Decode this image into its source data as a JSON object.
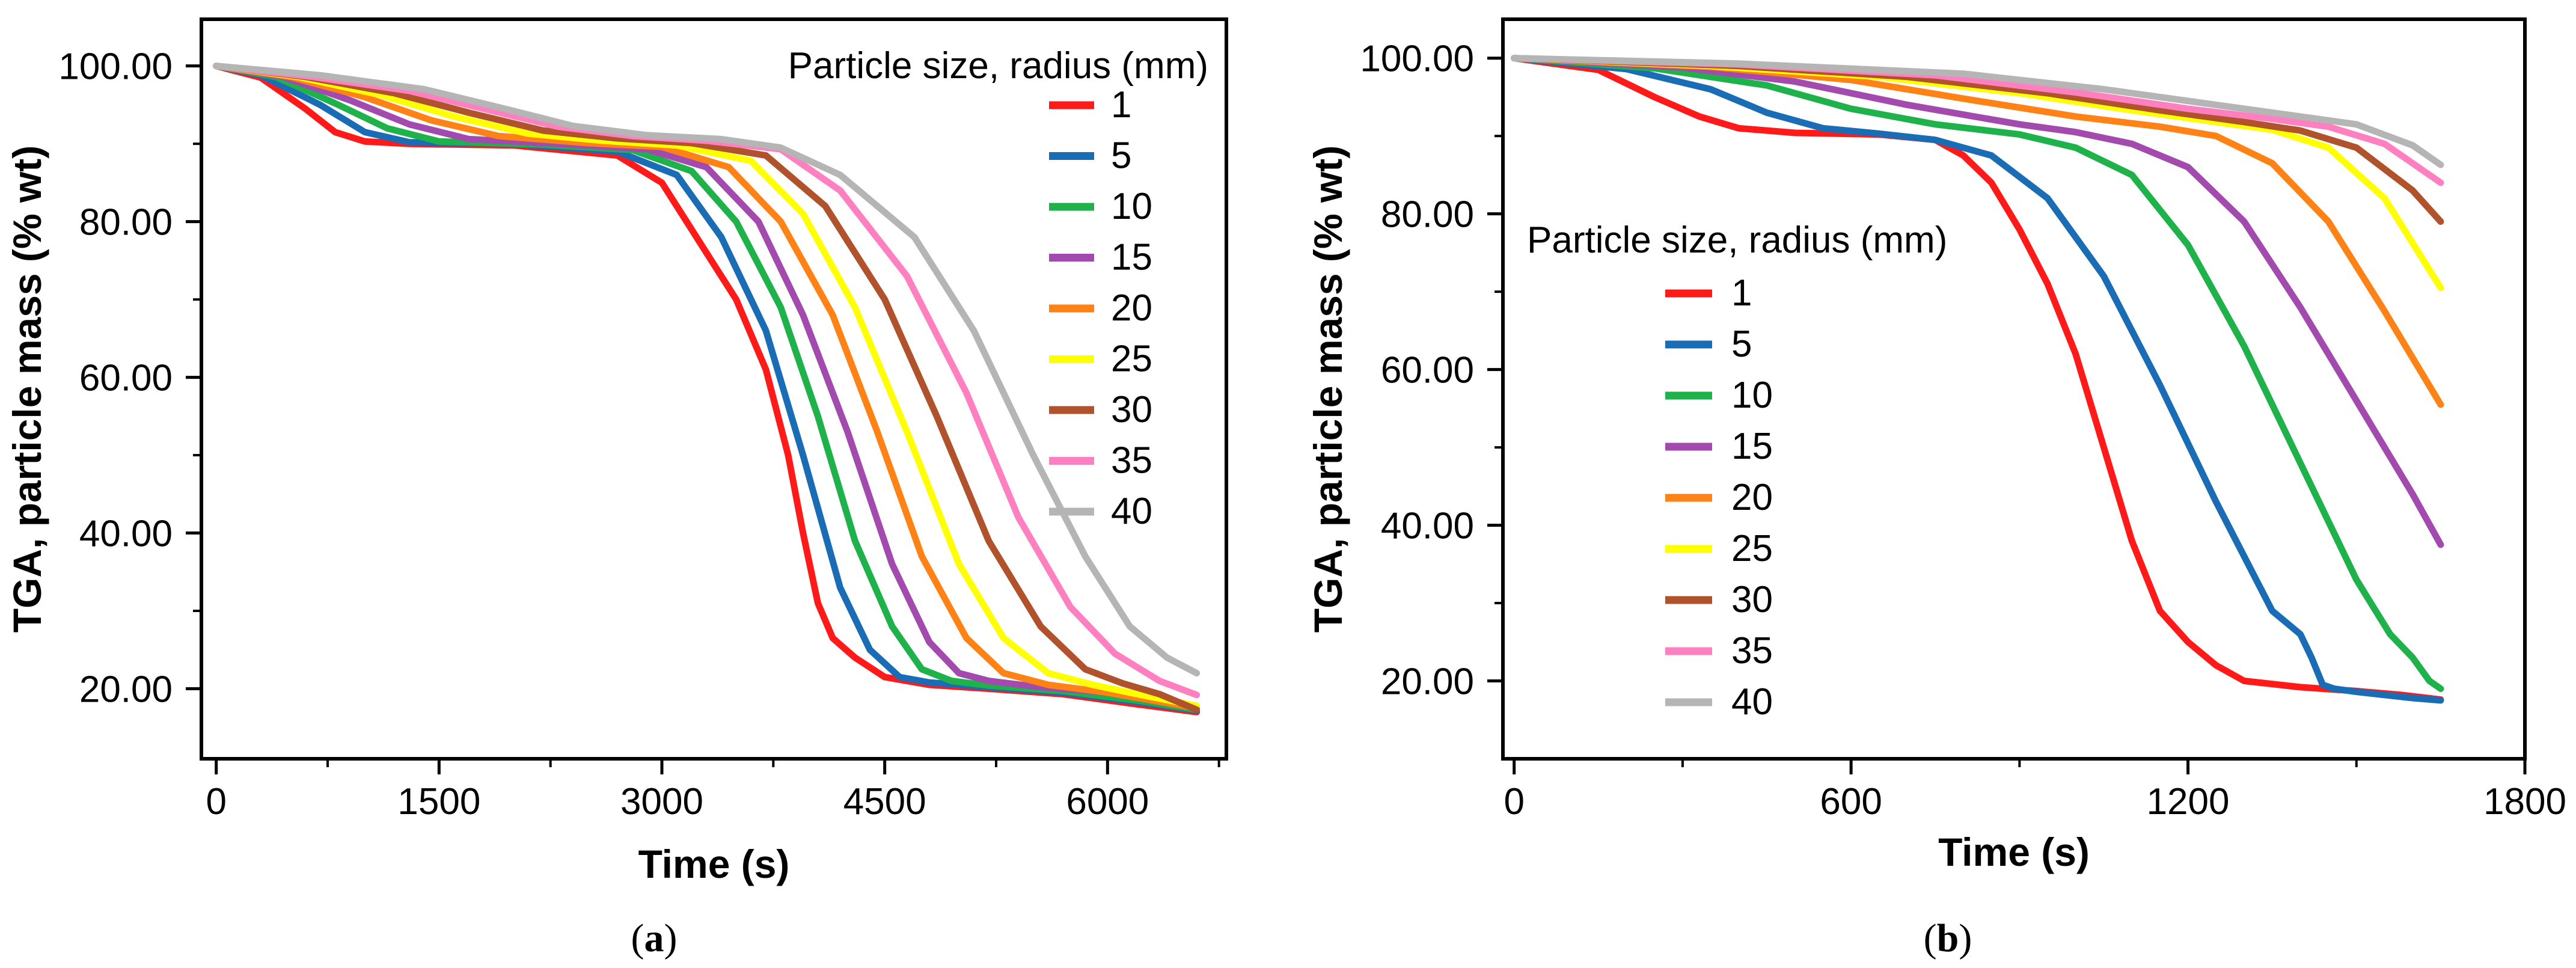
{
  "chart_data": [
    {
      "type": "line",
      "panel_label": "a",
      "xlabel": "Time (s)",
      "ylabel": "TGA, particle mass (% wt)",
      "xlim": [
        -100,
        6800
      ],
      "ylim": [
        11,
        106
      ],
      "xticks": [
        0,
        1500,
        3000,
        4500,
        6000
      ],
      "xtick_labels": [
        "0",
        "1500",
        "3000",
        "4500",
        "6000"
      ],
      "yticks": [
        20,
        40,
        60,
        80,
        100
      ],
      "ytick_labels": [
        "20.00",
        "40.00",
        "60.00",
        "80.00",
        "100.00"
      ],
      "grid": false,
      "legend": {
        "title": "Particle size, radius (mm)",
        "placement": "top-right"
      },
      "series": [
        {
          "name": "1",
          "color": "#ff1a1a",
          "x": [
            0,
            300,
            600,
            800,
            1000,
            1300,
            2000,
            2700,
            3000,
            3300,
            3500,
            3700,
            3850,
            3950,
            4050,
            4150,
            4300,
            4500,
            4800,
            5200,
            5700,
            6200,
            6600
          ],
          "y": [
            100,
            98.5,
            94.5,
            91.5,
            90.3,
            90,
            89.8,
            88.5,
            85,
            76,
            70,
            61,
            50,
            40,
            31,
            26.5,
            24,
            21.5,
            20.5,
            20,
            19.3,
            18,
            17
          ]
        },
        {
          "name": "5",
          "color": "#1a6db5",
          "x": [
            0,
            300,
            700,
            1000,
            1300,
            2000,
            2700,
            3100,
            3400,
            3700,
            3950,
            4200,
            4400,
            4600,
            4800,
            5200,
            5700,
            6200,
            6600
          ],
          "y": [
            100,
            98.8,
            95,
            91.5,
            90.2,
            90,
            89,
            86,
            78,
            66,
            50,
            33,
            25,
            21.5,
            20.8,
            20.2,
            19.5,
            18.3,
            17.2
          ]
        },
        {
          "name": "10",
          "color": "#1fb24b",
          "x": [
            0,
            400,
            800,
            1150,
            1500,
            2200,
            2800,
            3200,
            3500,
            3800,
            4050,
            4300,
            4550,
            4750,
            4950,
            5200,
            5700,
            6200,
            6600
          ],
          "y": [
            100,
            98.6,
            95.2,
            92,
            90.3,
            89.9,
            89.2,
            86.5,
            80,
            69,
            55,
            39,
            28,
            22.5,
            21,
            20.4,
            19.7,
            18.5,
            17.3
          ]
        },
        {
          "name": "15",
          "color": "#a24aae",
          "x": [
            0,
            450,
            900,
            1300,
            1700,
            2300,
            2900,
            3300,
            3650,
            3950,
            4250,
            4550,
            4800,
            5000,
            5200,
            5500,
            6000,
            6600
          ],
          "y": [
            100,
            98.6,
            95.6,
            92.5,
            90.6,
            90,
            89.3,
            87,
            80,
            68,
            53,
            36,
            26,
            22,
            21,
            20.3,
            19.5,
            17.5
          ]
        },
        {
          "name": "20",
          "color": "#ff8216",
          "x": [
            0,
            500,
            1000,
            1450,
            1900,
            2500,
            3000,
            3450,
            3800,
            4150,
            4450,
            4750,
            5050,
            5300,
            5600,
            6000,
            6600
          ],
          "y": [
            100,
            98.6,
            96,
            93,
            91,
            90.1,
            89.6,
            87,
            80,
            68,
            53,
            37,
            26.5,
            22,
            20.5,
            19.5,
            17.5
          ]
        },
        {
          "name": "25",
          "color": "#ffff00",
          "x": [
            0,
            550,
            1100,
            1600,
            2100,
            2600,
            3100,
            3600,
            3950,
            4300,
            4650,
            5000,
            5300,
            5600,
            5900,
            6200,
            6600
          ],
          "y": [
            100,
            98.6,
            96.3,
            93.5,
            91.3,
            90.4,
            89.8,
            87.8,
            81,
            69,
            53,
            36,
            26.5,
            22,
            20.5,
            19.3,
            17.8
          ]
        },
        {
          "name": "30",
          "color": "#b0522b",
          "x": [
            0,
            600,
            1200,
            1700,
            2200,
            2700,
            3200,
            3700,
            4100,
            4500,
            4850,
            5200,
            5550,
            5850,
            6100,
            6350,
            6600
          ],
          "y": [
            100,
            98.6,
            96.5,
            94,
            91.7,
            90.7,
            90.1,
            88.5,
            82,
            70,
            55,
            39,
            28,
            22.5,
            20.7,
            19.3,
            17.3
          ]
        },
        {
          "name": "35",
          "color": "#ff80c0",
          "x": [
            0,
            650,
            1300,
            1800,
            2300,
            2800,
            3300,
            3800,
            4200,
            4650,
            5050,
            5400,
            5750,
            6050,
            6350,
            6600
          ],
          "y": [
            100,
            98.6,
            96.8,
            94.5,
            92.2,
            91,
            90.4,
            89.3,
            84,
            73,
            58,
            42,
            30.5,
            24.5,
            21,
            19.2
          ]
        },
        {
          "name": "40",
          "color": "#b5b5b5",
          "x": [
            0,
            700,
            1400,
            1900,
            2400,
            2900,
            3400,
            3800,
            4200,
            4700,
            5100,
            5500,
            5850,
            6150,
            6400,
            6600
          ],
          "y": [
            100,
            98.8,
            97,
            94.7,
            92.3,
            91.1,
            90.6,
            89.5,
            86,
            78,
            66,
            50,
            37,
            28,
            24,
            22
          ]
        }
      ]
    },
    {
      "type": "line",
      "panel_label": "b",
      "xlabel": "Time (s)",
      "ylabel": "TGA, particle mass (% wt)",
      "xlim": [
        -20,
        1800
      ],
      "ylim": [
        10,
        105
      ],
      "xticks": [
        0,
        600,
        1200,
        1800
      ],
      "xtick_labels": [
        "0",
        "600",
        "1200",
        "1800"
      ],
      "yticks": [
        20,
        40,
        60,
        80,
        100
      ],
      "ytick_labels": [
        "20.00",
        "40.00",
        "60.00",
        "80.00",
        "100.00"
      ],
      "grid": false,
      "legend": {
        "title": "Particle size, radius (mm)",
        "placement": "center-left"
      },
      "series": [
        {
          "name": "1",
          "color": "#ff1a1a",
          "x": [
            0,
            150,
            250,
            330,
            400,
            500,
            650,
            750,
            800,
            850,
            900,
            950,
            1000,
            1050,
            1100,
            1150,
            1200,
            1250,
            1300,
            1400,
            1500,
            1580,
            1650
          ],
          "y": [
            100,
            98.5,
            95,
            92.5,
            91,
            90.4,
            90.2,
            89.5,
            87.5,
            84,
            78,
            71,
            62,
            50,
            38,
            29,
            25,
            22,
            20,
            19.2,
            18.7,
            18.2,
            17.6
          ]
        },
        {
          "name": "5",
          "color": "#1a6db5",
          "x": [
            0,
            200,
            350,
            450,
            550,
            650,
            750,
            850,
            950,
            1050,
            1150,
            1250,
            1300,
            1350,
            1400,
            1420,
            1440,
            1460,
            1500,
            1600,
            1650
          ],
          "y": [
            100,
            98.6,
            96,
            93,
            91,
            90.3,
            89.5,
            87.5,
            82,
            72,
            58,
            43,
            36,
            29,
            26,
            23,
            19.5,
            19,
            18.6,
            17.8,
            17.5
          ]
        },
        {
          "name": "10",
          "color": "#1fb24b",
          "x": [
            0,
            250,
            450,
            600,
            750,
            900,
            1000,
            1100,
            1200,
            1300,
            1400,
            1500,
            1560,
            1600,
            1630,
            1650
          ],
          "y": [
            100,
            98.7,
            96.5,
            93.5,
            91.5,
            90.2,
            88.5,
            85,
            76,
            63,
            48,
            33,
            26,
            23,
            20,
            19
          ]
        },
        {
          "name": "15",
          "color": "#a24aae",
          "x": [
            0,
            300,
            500,
            700,
            900,
            1000,
            1100,
            1200,
            1300,
            1400,
            1500,
            1600,
            1650
          ],
          "y": [
            100,
            98.8,
            97,
            94,
            91.5,
            90.5,
            89,
            86,
            79,
            68,
            56,
            44,
            37.5
          ]
        },
        {
          "name": "20",
          "color": "#ff8216",
          "x": [
            0,
            350,
            600,
            800,
            1000,
            1150,
            1250,
            1350,
            1450,
            1550,
            1650
          ],
          "y": [
            100,
            98.9,
            97.2,
            94.8,
            92.5,
            91.2,
            90,
            86.5,
            79,
            67.5,
            55.5
          ]
        },
        {
          "name": "25",
          "color": "#ffff00",
          "x": [
            0,
            350,
            650,
            900,
            1100,
            1250,
            1350,
            1450,
            1550,
            1650
          ],
          "y": [
            100,
            99,
            97.6,
            95.5,
            93.3,
            91.8,
            90.8,
            88.5,
            82,
            70.5
          ]
        },
        {
          "name": "30",
          "color": "#b0522b",
          "x": [
            0,
            400,
            700,
            950,
            1150,
            1300,
            1400,
            1500,
            1600,
            1650
          ],
          "y": [
            100,
            99,
            97.6,
            95.5,
            93.3,
            91.8,
            90.7,
            88.5,
            83,
            79
          ]
        },
        {
          "name": "35",
          "color": "#ff80c0",
          "x": [
            0,
            400,
            750,
            1000,
            1200,
            1350,
            1450,
            1550,
            1650
          ],
          "y": [
            100,
            99.2,
            97.8,
            95.6,
            93.5,
            92.2,
            91.2,
            89,
            84
          ]
        },
        {
          "name": "40",
          "color": "#b5b5b5",
          "x": [
            0,
            400,
            800,
            1050,
            1250,
            1400,
            1500,
            1600,
            1650
          ],
          "y": [
            100,
            99.3,
            98,
            96,
            94,
            92.5,
            91.5,
            88.8,
            86.3
          ]
        }
      ]
    }
  ]
}
